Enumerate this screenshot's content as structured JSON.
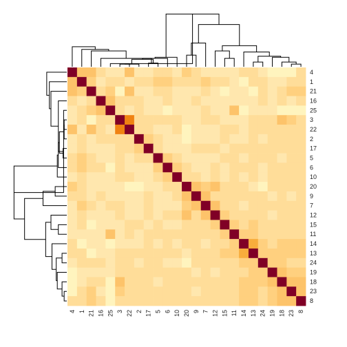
{
  "chart_data": {
    "type": "heatmap",
    "order": [
      "4",
      "1",
      "21",
      "16",
      "25",
      "3",
      "22",
      "2",
      "17",
      "5",
      "6",
      "10",
      "20",
      "9",
      "7",
      "12",
      "15",
      "11",
      "14",
      "13",
      "24",
      "19",
      "18",
      "23",
      "8"
    ],
    "col_labels": [
      "4",
      "1",
      "21",
      "16",
      "25",
      "3",
      "22",
      "2",
      "17",
      "5",
      "6",
      "10",
      "20",
      "9",
      "7",
      "12",
      "15",
      "11",
      "14",
      "13",
      "24",
      "19",
      "18",
      "23",
      "8"
    ],
    "row_labels": [
      "4",
      "1",
      "21",
      "16",
      "25",
      "3",
      "22",
      "2",
      "17",
      "5",
      "6",
      "10",
      "20",
      "9",
      "7",
      "12",
      "15",
      "11",
      "14",
      "13",
      "24",
      "19",
      "18",
      "23",
      "8"
    ],
    "palette": [
      "#FFFFCC",
      "#FFF4BE",
      "#FFE7AE",
      "#FFDD99",
      "#FFD07F",
      "#FDC36A",
      "#F8AD3C",
      "#F59D1A",
      "#F08212",
      "#E8600D",
      "#D03C06",
      "#B3220F",
      "#800026"
    ],
    "values": [
      [
        1.0,
        0.38,
        0.4,
        0.22,
        0.15,
        0.15,
        0.4,
        0.2,
        0.2,
        0.25,
        0.22,
        0.15,
        0.3,
        0.22,
        0.2,
        0.15,
        0.2,
        0.15,
        0.25,
        0.25,
        0.15,
        0.08,
        0.08,
        0.1,
        0.22
      ],
      [
        0.38,
        1.0,
        0.35,
        0.2,
        0.22,
        0.22,
        0.2,
        0.22,
        0.22,
        0.3,
        0.3,
        0.22,
        0.25,
        0.22,
        0.3,
        0.25,
        0.28,
        0.15,
        0.1,
        0.22,
        0.22,
        0.15,
        0.2,
        0.22,
        0.22
      ],
      [
        0.4,
        0.35,
        1.0,
        0.22,
        0.3,
        0.1,
        0.45,
        0.2,
        0.2,
        0.25,
        0.22,
        0.2,
        0.2,
        0.2,
        0.25,
        0.2,
        0.08,
        0.15,
        0.15,
        0.1,
        0.22,
        0.2,
        0.22,
        0.3,
        0.3
      ],
      [
        0.22,
        0.2,
        0.22,
        1.0,
        0.45,
        0.22,
        0.22,
        0.22,
        0.2,
        0.2,
        0.22,
        0.2,
        0.2,
        0.22,
        0.2,
        0.15,
        0.15,
        0.2,
        0.2,
        0.2,
        0.22,
        0.2,
        0.22,
        0.2,
        0.22
      ],
      [
        0.15,
        0.22,
        0.3,
        0.45,
        1.0,
        0.22,
        0.2,
        0.22,
        0.2,
        0.15,
        0.1,
        0.15,
        0.2,
        0.2,
        0.22,
        0.2,
        0.15,
        0.38,
        0.1,
        0.15,
        0.2,
        0.15,
        0.1,
        0.1,
        0.1
      ],
      [
        0.15,
        0.22,
        0.1,
        0.22,
        0.22,
        1.0,
        0.65,
        0.22,
        0.22,
        0.28,
        0.28,
        0.22,
        0.15,
        0.2,
        0.22,
        0.22,
        0.2,
        0.15,
        0.2,
        0.22,
        0.25,
        0.22,
        0.38,
        0.3,
        0.28
      ],
      [
        0.4,
        0.2,
        0.45,
        0.22,
        0.2,
        0.65,
        1.0,
        0.22,
        0.22,
        0.15,
        0.15,
        0.22,
        0.05,
        0.15,
        0.2,
        0.2,
        0.22,
        0.22,
        0.2,
        0.22,
        0.22,
        0.22,
        0.22,
        0.22,
        0.22
      ],
      [
        0.2,
        0.22,
        0.2,
        0.22,
        0.22,
        0.22,
        0.22,
        1.0,
        0.32,
        0.22,
        0.2,
        0.15,
        0.1,
        0.15,
        0.15,
        0.15,
        0.22,
        0.2,
        0.2,
        0.22,
        0.2,
        0.28,
        0.22,
        0.22,
        0.22
      ],
      [
        0.2,
        0.22,
        0.2,
        0.2,
        0.2,
        0.22,
        0.22,
        0.32,
        1.0,
        0.25,
        0.2,
        0.15,
        0.15,
        0.22,
        0.22,
        0.22,
        0.2,
        0.22,
        0.22,
        0.22,
        0.22,
        0.25,
        0.22,
        0.22,
        0.22
      ],
      [
        0.25,
        0.3,
        0.25,
        0.2,
        0.15,
        0.28,
        0.15,
        0.22,
        0.25,
        1.0,
        0.35,
        0.22,
        0.15,
        0.15,
        0.2,
        0.15,
        0.22,
        0.22,
        0.15,
        0.22,
        0.22,
        0.22,
        0.2,
        0.22,
        0.22
      ],
      [
        0.22,
        0.3,
        0.22,
        0.22,
        0.1,
        0.28,
        0.15,
        0.2,
        0.2,
        0.35,
        1.0,
        0.3,
        0.22,
        0.15,
        0.15,
        0.22,
        0.15,
        0.25,
        0.22,
        0.22,
        0.2,
        0.22,
        0.22,
        0.22,
        0.22
      ],
      [
        0.15,
        0.22,
        0.2,
        0.2,
        0.15,
        0.22,
        0.22,
        0.15,
        0.15,
        0.22,
        0.3,
        1.0,
        0.22,
        0.22,
        0.2,
        0.22,
        0.2,
        0.22,
        0.2,
        0.22,
        0.2,
        0.22,
        0.22,
        0.22,
        0.22
      ],
      [
        0.3,
        0.25,
        0.2,
        0.2,
        0.2,
        0.15,
        0.05,
        0.1,
        0.15,
        0.15,
        0.22,
        0.22,
        1.0,
        0.45,
        0.3,
        0.38,
        0.22,
        0.25,
        0.22,
        0.15,
        0.05,
        0.22,
        0.22,
        0.22,
        0.22
      ],
      [
        0.22,
        0.22,
        0.2,
        0.22,
        0.2,
        0.2,
        0.15,
        0.15,
        0.22,
        0.15,
        0.15,
        0.22,
        0.45,
        1.0,
        0.4,
        0.25,
        0.22,
        0.25,
        0.22,
        0.22,
        0.22,
        0.2,
        0.22,
        0.2,
        0.22
      ],
      [
        0.2,
        0.3,
        0.25,
        0.2,
        0.22,
        0.22,
        0.2,
        0.15,
        0.22,
        0.2,
        0.15,
        0.2,
        0.3,
        0.4,
        1.0,
        0.45,
        0.22,
        0.25,
        0.2,
        0.22,
        0.22,
        0.22,
        0.22,
        0.22,
        0.22
      ],
      [
        0.15,
        0.25,
        0.2,
        0.15,
        0.2,
        0.22,
        0.2,
        0.15,
        0.22,
        0.15,
        0.22,
        0.22,
        0.38,
        0.25,
        0.45,
        1.0,
        0.3,
        0.28,
        0.22,
        0.22,
        0.22,
        0.2,
        0.22,
        0.22,
        0.22
      ],
      [
        0.2,
        0.28,
        0.08,
        0.15,
        0.15,
        0.2,
        0.22,
        0.22,
        0.2,
        0.22,
        0.15,
        0.2,
        0.22,
        0.22,
        0.22,
        0.3,
        1.0,
        0.3,
        0.25,
        0.3,
        0.22,
        0.22,
        0.22,
        0.22,
        0.22
      ],
      [
        0.15,
        0.15,
        0.15,
        0.2,
        0.38,
        0.15,
        0.22,
        0.2,
        0.22,
        0.22,
        0.25,
        0.22,
        0.25,
        0.25,
        0.25,
        0.28,
        0.3,
        1.0,
        0.35,
        0.3,
        0.28,
        0.25,
        0.28,
        0.28,
        0.28
      ],
      [
        0.25,
        0.1,
        0.15,
        0.2,
        0.1,
        0.2,
        0.2,
        0.2,
        0.22,
        0.15,
        0.22,
        0.2,
        0.22,
        0.22,
        0.2,
        0.22,
        0.25,
        0.35,
        1.0,
        0.5,
        0.3,
        0.25,
        0.3,
        0.3,
        0.3
      ],
      [
        0.25,
        0.22,
        0.1,
        0.2,
        0.15,
        0.22,
        0.22,
        0.22,
        0.22,
        0.22,
        0.22,
        0.22,
        0.15,
        0.22,
        0.22,
        0.22,
        0.3,
        0.3,
        0.5,
        1.0,
        0.35,
        0.3,
        0.35,
        0.32,
        0.3
      ],
      [
        0.15,
        0.22,
        0.22,
        0.22,
        0.2,
        0.25,
        0.22,
        0.2,
        0.22,
        0.22,
        0.2,
        0.2,
        0.05,
        0.22,
        0.22,
        0.22,
        0.22,
        0.28,
        0.3,
        0.35,
        1.0,
        0.3,
        0.3,
        0.28,
        0.28
      ],
      [
        0.08,
        0.15,
        0.2,
        0.2,
        0.15,
        0.22,
        0.22,
        0.28,
        0.25,
        0.22,
        0.22,
        0.22,
        0.22,
        0.2,
        0.22,
        0.2,
        0.22,
        0.25,
        0.25,
        0.3,
        0.3,
        1.0,
        0.4,
        0.35,
        0.35
      ],
      [
        0.08,
        0.2,
        0.22,
        0.22,
        0.1,
        0.38,
        0.22,
        0.22,
        0.22,
        0.2,
        0.22,
        0.22,
        0.22,
        0.22,
        0.22,
        0.22,
        0.22,
        0.28,
        0.3,
        0.35,
        0.3,
        0.4,
        1.0,
        0.45,
        0.38
      ],
      [
        0.1,
        0.22,
        0.3,
        0.2,
        0.1,
        0.3,
        0.22,
        0.22,
        0.22,
        0.22,
        0.22,
        0.22,
        0.22,
        0.2,
        0.22,
        0.22,
        0.22,
        0.28,
        0.3,
        0.32,
        0.28,
        0.35,
        0.45,
        1.0,
        0.38
      ],
      [
        0.22,
        0.22,
        0.3,
        0.22,
        0.1,
        0.28,
        0.22,
        0.22,
        0.22,
        0.22,
        0.22,
        0.22,
        0.22,
        0.22,
        0.22,
        0.22,
        0.22,
        0.28,
        0.3,
        0.3,
        0.28,
        0.35,
        0.38,
        0.38,
        1.0
      ]
    ],
    "merges": [
      [
        6,
        7,
        0.05
      ],
      [
        7,
        8,
        0.05
      ],
      [
        9,
        10,
        0.07
      ],
      [
        8,
        9,
        0.14
      ],
      [
        10,
        11,
        0.16
      ],
      [
        11,
        12,
        0.18
      ],
      [
        24,
        25,
        0.05
      ],
      [
        23,
        24,
        0.09
      ],
      [
        22,
        23,
        0.18
      ],
      [
        20,
        21,
        0.09
      ],
      [
        21,
        22,
        0.2
      ],
      [
        19,
        20,
        0.28
      ],
      [
        17,
        18,
        0.16
      ],
      [
        16,
        17,
        0.3
      ],
      [
        16,
        19,
        0.4
      ],
      [
        13,
        14,
        0.22
      ],
      [
        14,
        15,
        0.45
      ],
      [
        15,
        16,
        0.8
      ],
      [
        12,
        13,
        1.0
      ],
      [
        5,
        6,
        0.06
      ],
      [
        4,
        5,
        0.16
      ],
      [
        3,
        4,
        0.3
      ],
      [
        2,
        3,
        0.33
      ],
      [
        1,
        2,
        0.38
      ],
      [
        2,
        12,
        0.7
      ],
      [
        1,
        2,
        0.75
      ],
      [
        1,
        12,
        1.05
      ],
      [
        1,
        16,
        1.2
      ]
    ]
  }
}
